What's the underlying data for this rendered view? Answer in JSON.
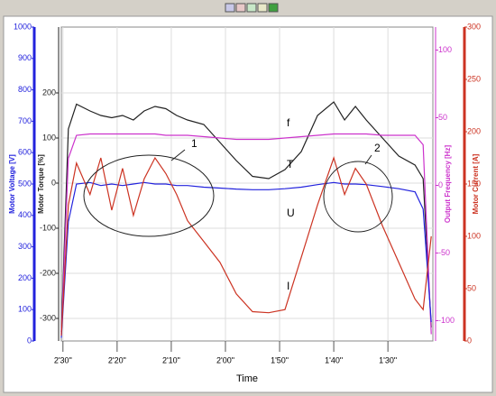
{
  "chart_data": {
    "type": "line",
    "xlabel": "Time",
    "xlim": [
      150.3,
      81.7
    ],
    "xticks": [
      {
        "value": 150,
        "label": "2'30\""
      },
      {
        "value": 140,
        "label": "2'20\""
      },
      {
        "value": 130,
        "label": "2'10\""
      },
      {
        "value": 120,
        "label": "2'00\""
      },
      {
        "value": 110,
        "label": "1'50\""
      },
      {
        "value": 100,
        "label": "1'40\""
      },
      {
        "value": 90,
        "label": "1'30\""
      }
    ],
    "grid": true,
    "axes": [
      {
        "label": "Motor Voltage [V]",
        "color": "#2222dd",
        "lim": [
          0,
          1000
        ],
        "ticks": [
          0,
          100,
          200,
          300,
          400,
          500,
          600,
          700,
          800,
          900,
          1000
        ]
      },
      {
        "label": "Motor Torque [%]",
        "color": "#222222",
        "lim": [
          -350,
          346
        ],
        "ticks": [
          -300,
          -200,
          -100,
          0,
          100,
          200
        ]
      },
      {
        "label": "Output Frequency [Hz]",
        "color": "#cc33cc",
        "lim": [
          -115,
          117
        ],
        "ticks": [
          -100,
          -50,
          0,
          50,
          100
        ]
      },
      {
        "label": "Motor Current [A]",
        "color": "#cc3322",
        "lim": [
          0,
          300
        ],
        "ticks": [
          0,
          50,
          100,
          150,
          200,
          250,
          300
        ]
      }
    ],
    "x": [
      150.3,
      149,
      147.5,
      145,
      143,
      141,
      139,
      137,
      135,
      133,
      131,
      129,
      127,
      124,
      121,
      118,
      115,
      112,
      109,
      106,
      103,
      100,
      98,
      96,
      94,
      91,
      88,
      85,
      83.5,
      82
    ],
    "series": [
      {
        "name": "T",
        "axis": 1,
        "color": "#222222",
        "values": [
          -330,
          120,
          175,
          160,
          150,
          145,
          150,
          140,
          160,
          170,
          165,
          150,
          140,
          130,
          90,
          50,
          15,
          10,
          30,
          70,
          150,
          180,
          140,
          170,
          140,
          100,
          60,
          40,
          10,
          -320
        ]
      },
      {
        "name": "f",
        "axis": 2,
        "color": "#cc33cc",
        "values": [
          -110,
          20,
          37,
          38,
          38,
          38,
          38,
          38,
          38,
          38,
          37,
          37,
          37,
          36,
          35,
          34,
          34,
          34,
          35,
          36,
          37,
          38,
          38,
          38,
          38,
          37,
          37,
          37,
          30,
          -110
        ]
      },
      {
        "name": "U",
        "axis": 0,
        "color": "#2222dd",
        "values": [
          10,
          380,
          500,
          505,
          495,
          500,
          495,
          500,
          505,
          500,
          500,
          495,
          495,
          490,
          487,
          484,
          482,
          482,
          485,
          490,
          498,
          505,
          500,
          500,
          498,
          492,
          485,
          475,
          420,
          60
        ]
      },
      {
        "name": "I",
        "axis": 3,
        "color": "#cc3322",
        "values": [
          5,
          130,
          170,
          140,
          175,
          125,
          165,
          120,
          155,
          175,
          160,
          140,
          115,
          95,
          75,
          45,
          28,
          27,
          30,
          80,
          130,
          175,
          140,
          165,
          150,
          110,
          75,
          40,
          30,
          100
        ]
      }
    ],
    "annotations": [
      "1",
      "2"
    ]
  }
}
